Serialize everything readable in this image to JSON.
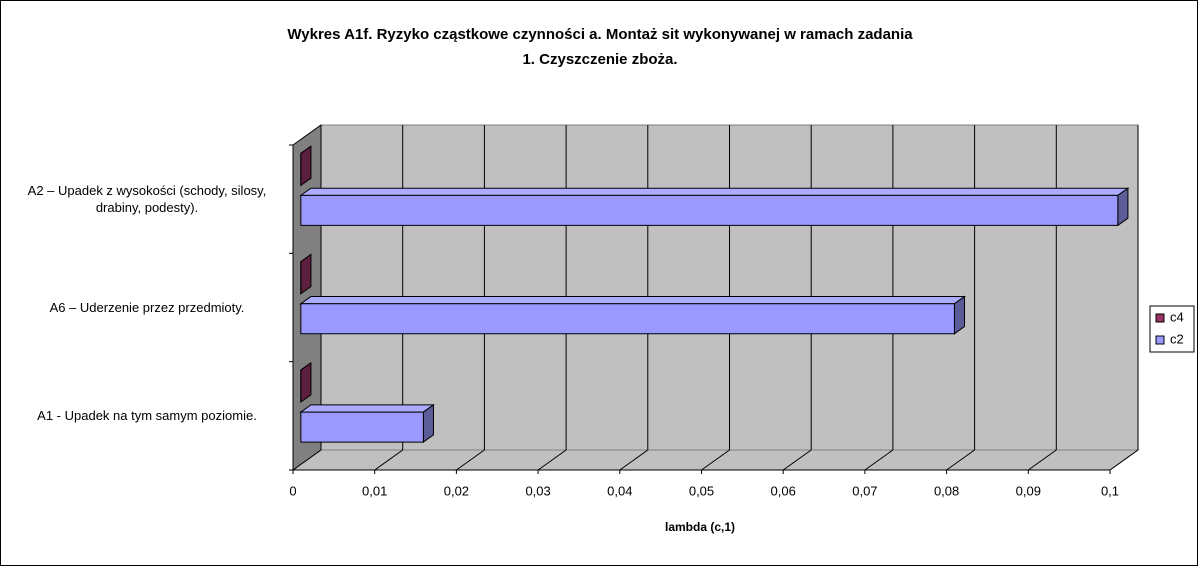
{
  "chart_data": {
    "type": "bar3d",
    "orientation": "horizontal",
    "title": [
      "Wykres A1f. Ryzyko cząstkowe czynności a. Montaż sit wykonywanej w ramach zadania",
      "1. Czyszczenie zboża."
    ],
    "x_label": "lambda (c,1)",
    "categories": [
      "A2 – Upadek z wysokości (schody, silosy, drabiny, podesty).",
      "A6 – Uderzenie przez przedmioty.",
      "A1 - Upadek na tym samym poziomie."
    ],
    "series": [
      {
        "name": "c4",
        "color": "#993366",
        "values": [
          0,
          0,
          0
        ]
      },
      {
        "name": "c2",
        "color": "#9999ff",
        "values": [
          0.1,
          0.08,
          0.015
        ]
      }
    ],
    "xlim": [
      0,
      0.1
    ],
    "xticks": [
      0,
      {
        "value": 0.01,
        "label": "0,01"
      },
      {
        "value": 0.02,
        "label": "0,02"
      },
      {
        "value": 0.03,
        "label": "0,03"
      },
      {
        "value": 0.04,
        "label": "0,04"
      },
      {
        "value": 0.05,
        "label": "0,05"
      },
      {
        "value": 0.06,
        "label": "0,06"
      },
      {
        "value": 0.07,
        "label": "0,07"
      },
      {
        "value": 0.08,
        "label": "0,08"
      },
      {
        "value": 0.09,
        "label": "0,09"
      },
      {
        "value": 0.1,
        "label": "0,1"
      }
    ],
    "grid": true,
    "legend": "right"
  }
}
